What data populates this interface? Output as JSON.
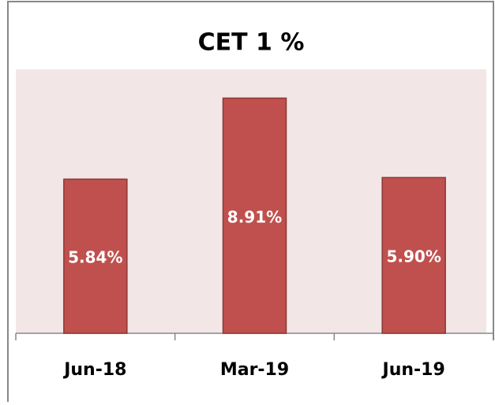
{
  "chart_data": {
    "type": "bar",
    "title": "CET 1 %",
    "categories": [
      "Jun-18",
      "Mar-19",
      "Jun-19"
    ],
    "values": [
      5.84,
      8.91,
      5.9
    ],
    "value_labels": [
      "5.84%",
      "8.91%",
      "5.90%"
    ],
    "color": "#c0504d",
    "ylim": [
      0,
      10
    ]
  }
}
